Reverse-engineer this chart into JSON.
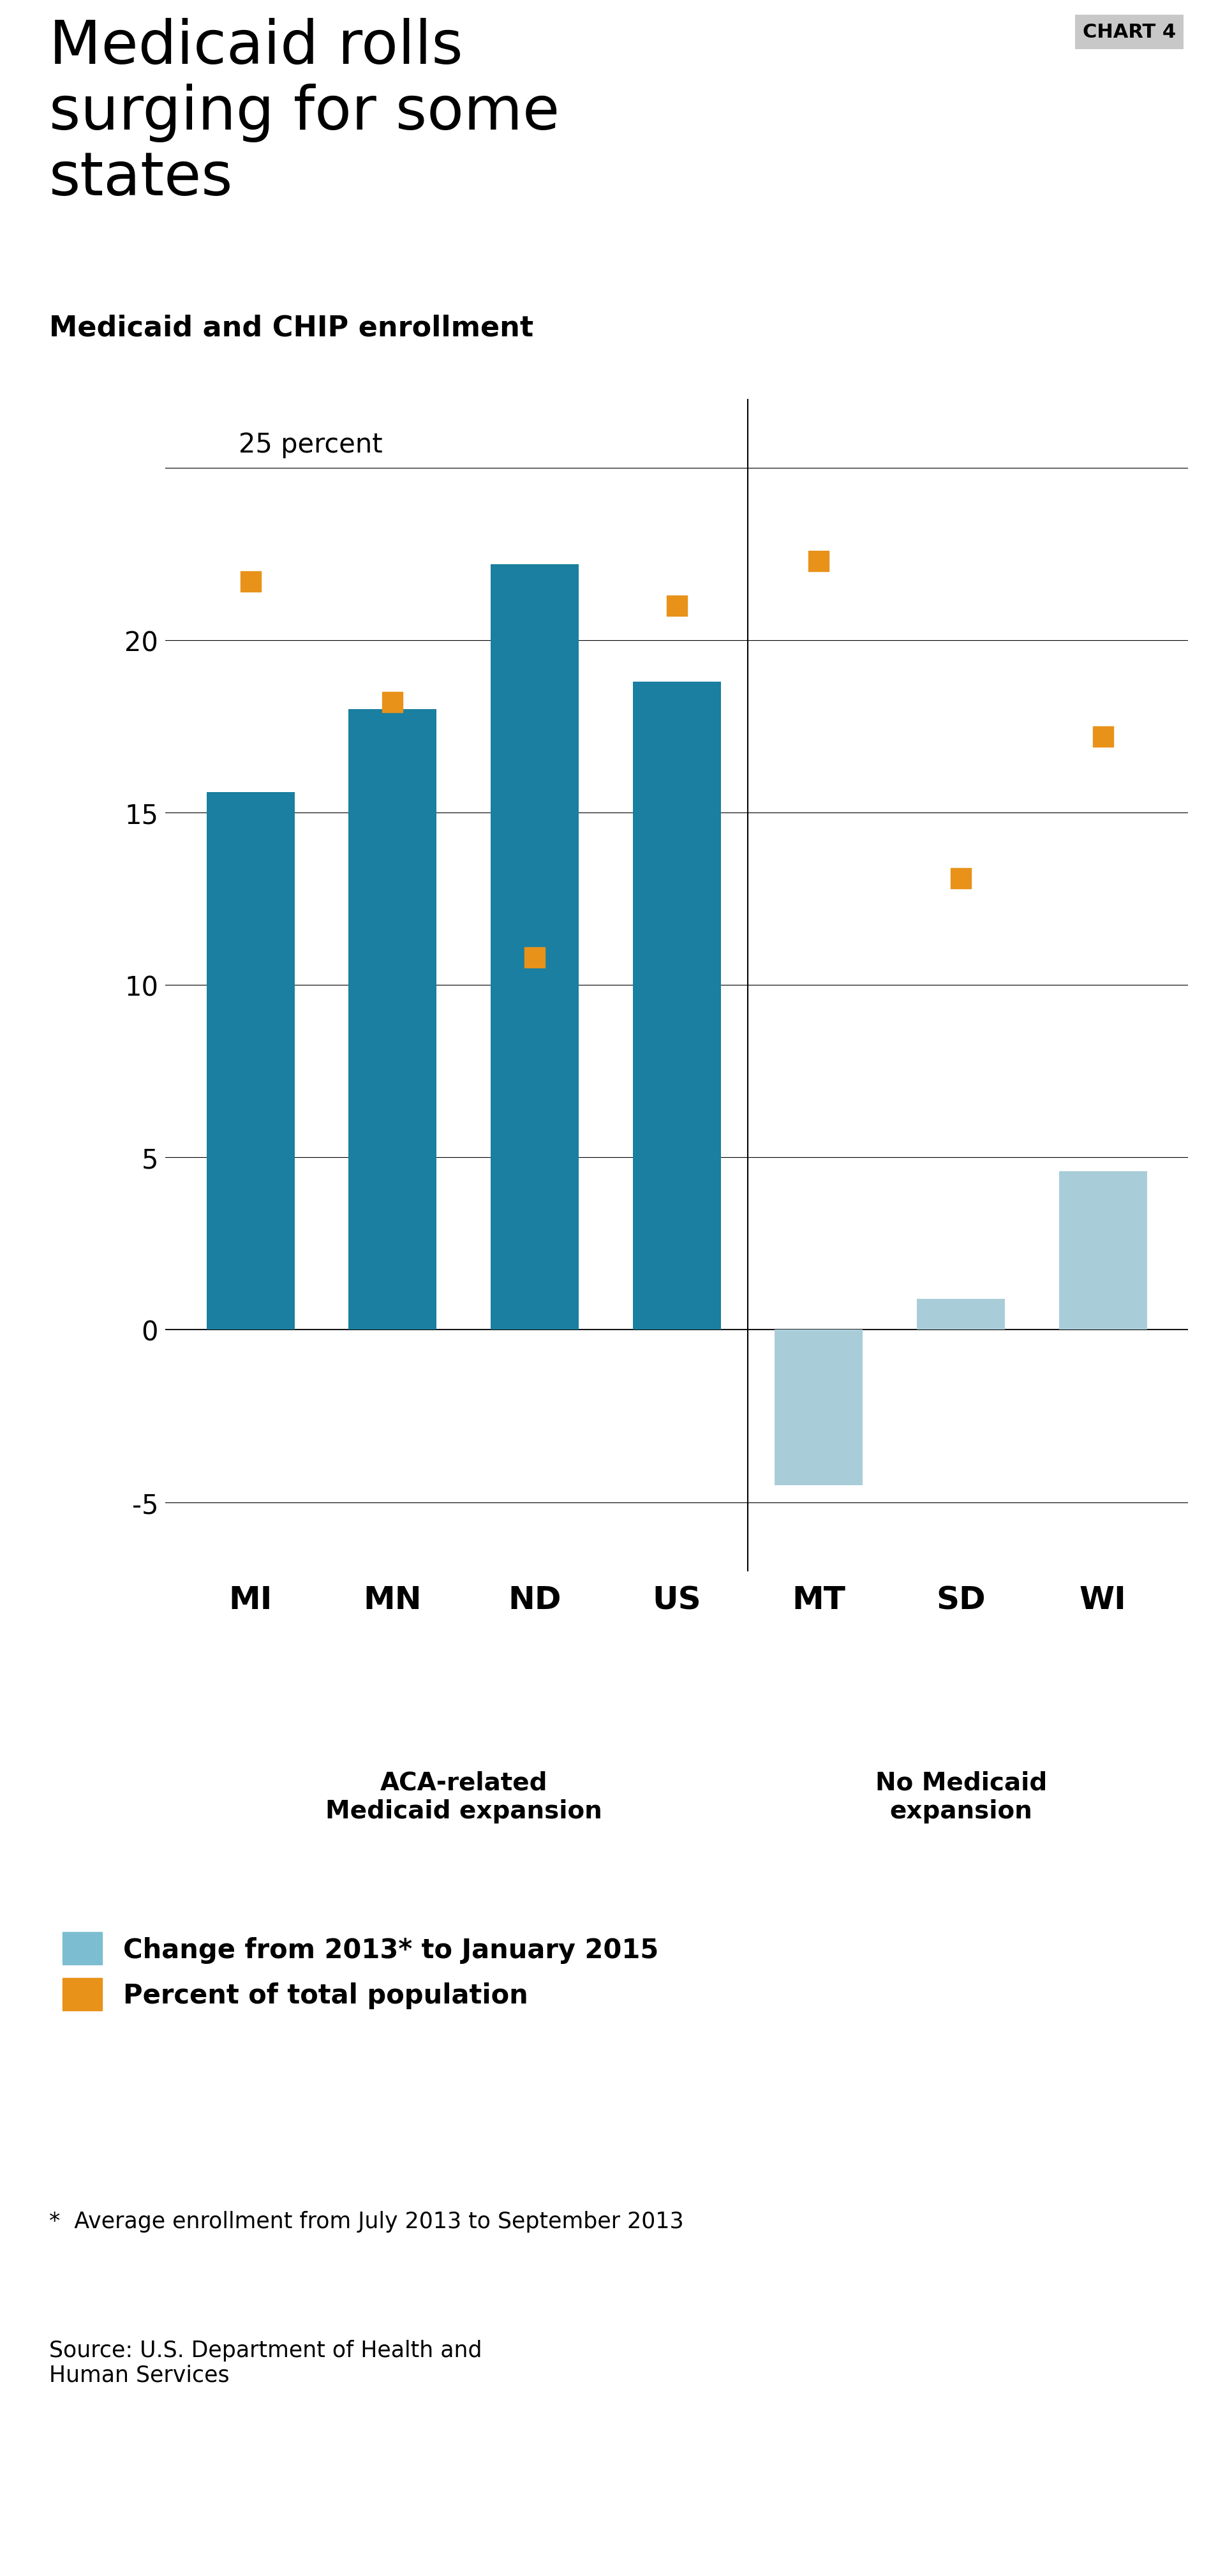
{
  "title_main": "Medicaid rolls\nsurging for some\nstates",
  "chart_label": "CHART 4",
  "subtitle": "Medicaid and CHIP enrollment",
  "categories": [
    "MI",
    "MN",
    "ND",
    "US",
    "MT",
    "SD",
    "WI"
  ],
  "bar_values": [
    15.6,
    18.0,
    22.2,
    18.8,
    -4.5,
    0.9,
    4.6
  ],
  "dot_values": [
    21.7,
    18.2,
    10.8,
    21.0,
    22.3,
    13.1,
    17.2
  ],
  "bar_color_expansion": "#1a7fa0",
  "bar_color_no_expansion": "#a8cdd9",
  "legend_bar_color": "#7dbdd1",
  "dot_color": "#e8921a",
  "ylim": [
    -7,
    27
  ],
  "yticks": [
    -5,
    0,
    5,
    10,
    15,
    20,
    25
  ],
  "group1_label_line1": "ACA-related",
  "group1_label_line2": "Medicaid expansion",
  "group2_label_line1": "No Medicaid",
  "group2_label_line2": "expansion",
  "legend_bar_label": "Change from 2013* to January 2015",
  "legend_dot_label": "Percent of total population",
  "footnote": "*  Average enrollment from July 2013 to September 2013",
  "source": "Source: U.S. Department of Health and\nHuman Services",
  "background_color": "#ffffff",
  "title_fontsize": 68,
  "subtitle_fontsize": 32,
  "tick_fontsize": 30,
  "xtick_fontsize": 36,
  "label_fontsize": 28,
  "legend_fontsize": 30,
  "footnote_fontsize": 25,
  "chart_label_fontsize": 22
}
